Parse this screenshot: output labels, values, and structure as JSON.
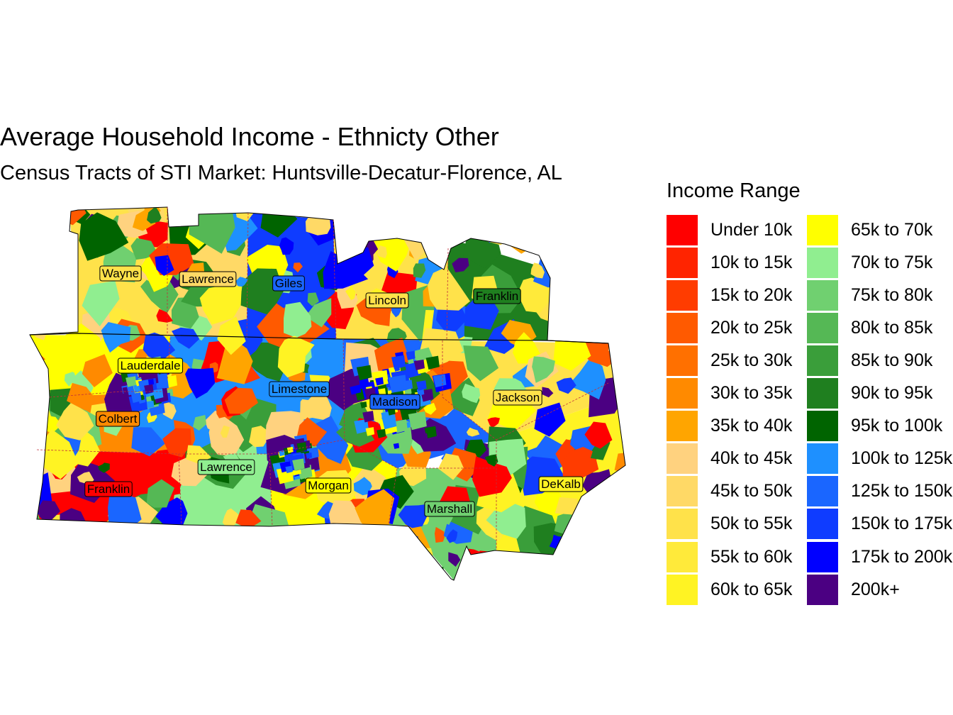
{
  "title": "Average Household Income - Ethnicty Other",
  "subtitle": "Census Tracts of STI Market: Huntsville-Decatur-Florence, AL",
  "legend": {
    "title": "Income Range",
    "items": [
      {
        "label": "Under 10k",
        "color": "#ff0000"
      },
      {
        "label": "10k to 15k",
        "color": "#ff2400"
      },
      {
        "label": "15k to 20k",
        "color": "#ff3c00"
      },
      {
        "label": "20k to 25k",
        "color": "#ff5a00"
      },
      {
        "label": "25k to 30k",
        "color": "#ff7000"
      },
      {
        "label": "30k to 35k",
        "color": "#ff8a00"
      },
      {
        "label": "35k to 40k",
        "color": "#ffa500"
      },
      {
        "label": "40k to 45k",
        "color": "#ffd27f"
      },
      {
        "label": "45k to 50k",
        "color": "#ffd966"
      },
      {
        "label": "50k to 55k",
        "color": "#ffe24a"
      },
      {
        "label": "55k to 60k",
        "color": "#ffea3a"
      },
      {
        "label": "60k to 65k",
        "color": "#fff323"
      },
      {
        "label": "65k to 70k",
        "color": "#ffff00"
      },
      {
        "label": "70k to 75k",
        "color": "#90ee90"
      },
      {
        "label": "75k to 80k",
        "color": "#70d070"
      },
      {
        "label": "80k to 85k",
        "color": "#55b855"
      },
      {
        "label": "85k to 90k",
        "color": "#3a9e3a"
      },
      {
        "label": "90k to 95k",
        "color": "#1f7f1f"
      },
      {
        "label": "95k to 100k",
        "color": "#006400"
      },
      {
        "label": "100k to 125k",
        "color": "#1e90ff"
      },
      {
        "label": "125k to 150k",
        "color": "#1a66ff"
      },
      {
        "label": "150k to 175k",
        "color": "#0f3cff"
      },
      {
        "label": "175k to 200k",
        "color": "#0000ff"
      },
      {
        "label": "200k+",
        "color": "#4b0082"
      }
    ]
  },
  "counties": [
    {
      "name": "Wayne",
      "class": 9
    },
    {
      "name": "Lawrence",
      "class": 8
    },
    {
      "name": "Giles",
      "class": 20
    },
    {
      "name": "Lincoln",
      "class": 9
    },
    {
      "name": "Franklin",
      "class": 17
    },
    {
      "name": "Lauderdale",
      "class": 12
    },
    {
      "name": "Limestone",
      "class": 19
    },
    {
      "name": "Madison",
      "class": 20
    },
    {
      "name": "Jackson",
      "class": 9
    },
    {
      "name": "Colbert",
      "class": 5
    },
    {
      "name": "Lawrence",
      "class": 13
    },
    {
      "name": "Franklin",
      "class": 0
    },
    {
      "name": "Morgan",
      "class": 12
    },
    {
      "name": "DeKalb",
      "class": 11
    },
    {
      "name": "Marshall",
      "class": 14
    }
  ]
}
